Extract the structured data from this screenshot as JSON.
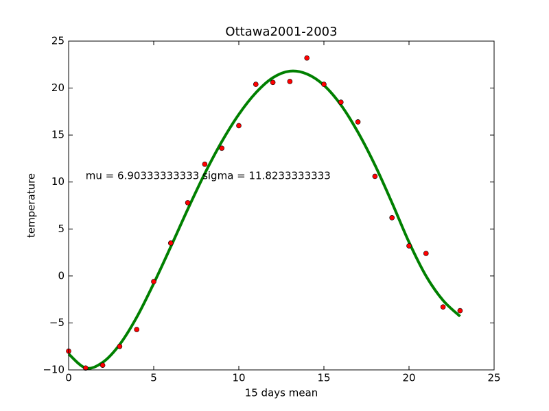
{
  "chart_data": {
    "type": "combo",
    "title": "Ottawa2001-2003",
    "x_label": "15 days mean",
    "y_label": "temperature",
    "annotation": {
      "text": "mu = 6.90333333333 sigma = 11.8233333333",
      "x": 1,
      "y": 10.2
    },
    "xlim": [
      0,
      25
    ],
    "xticks": [
      0,
      5,
      10,
      15,
      20,
      25
    ],
    "ylim": [
      -10,
      25
    ],
    "yticks": [
      {
        "value": -10,
        "label": "−10"
      },
      {
        "value": -5,
        "label": "−5"
      },
      0,
      5,
      10,
      15,
      20,
      25
    ],
    "series": [
      {
        "type": "line",
        "color": "#008000",
        "x": [
          0,
          1,
          2,
          3,
          4,
          5,
          6,
          7,
          8,
          9,
          10,
          11,
          12,
          13,
          14,
          15,
          16,
          17,
          18,
          19,
          20,
          21,
          22,
          23
        ],
        "values": [
          -8.3,
          -9.8,
          -9.2,
          -7.3,
          -4.4,
          -0.8,
          3.1,
          7.1,
          10.9,
          14.3,
          17.2,
          19.5,
          21.1,
          21.8,
          21.5,
          20.3,
          18.2,
          15.3,
          11.8,
          7.8,
          3.6,
          0.0,
          -2.6,
          -4.3
        ]
      },
      {
        "type": "scatter",
        "color": "#ff0000",
        "x": [
          0,
          1,
          2,
          3,
          4,
          5,
          6,
          7,
          8,
          9,
          10,
          11,
          12,
          13,
          14,
          15,
          16,
          17,
          18,
          19,
          20,
          21,
          22,
          23
        ],
        "values": [
          -8.0,
          -9.8,
          -9.5,
          -7.5,
          -5.7,
          -0.6,
          3.5,
          7.8,
          11.9,
          13.6,
          16.0,
          20.4,
          20.6,
          20.7,
          23.2,
          20.4,
          18.5,
          16.4,
          10.6,
          6.2,
          3.2,
          2.4,
          -3.3,
          -3.7
        ]
      }
    ]
  }
}
